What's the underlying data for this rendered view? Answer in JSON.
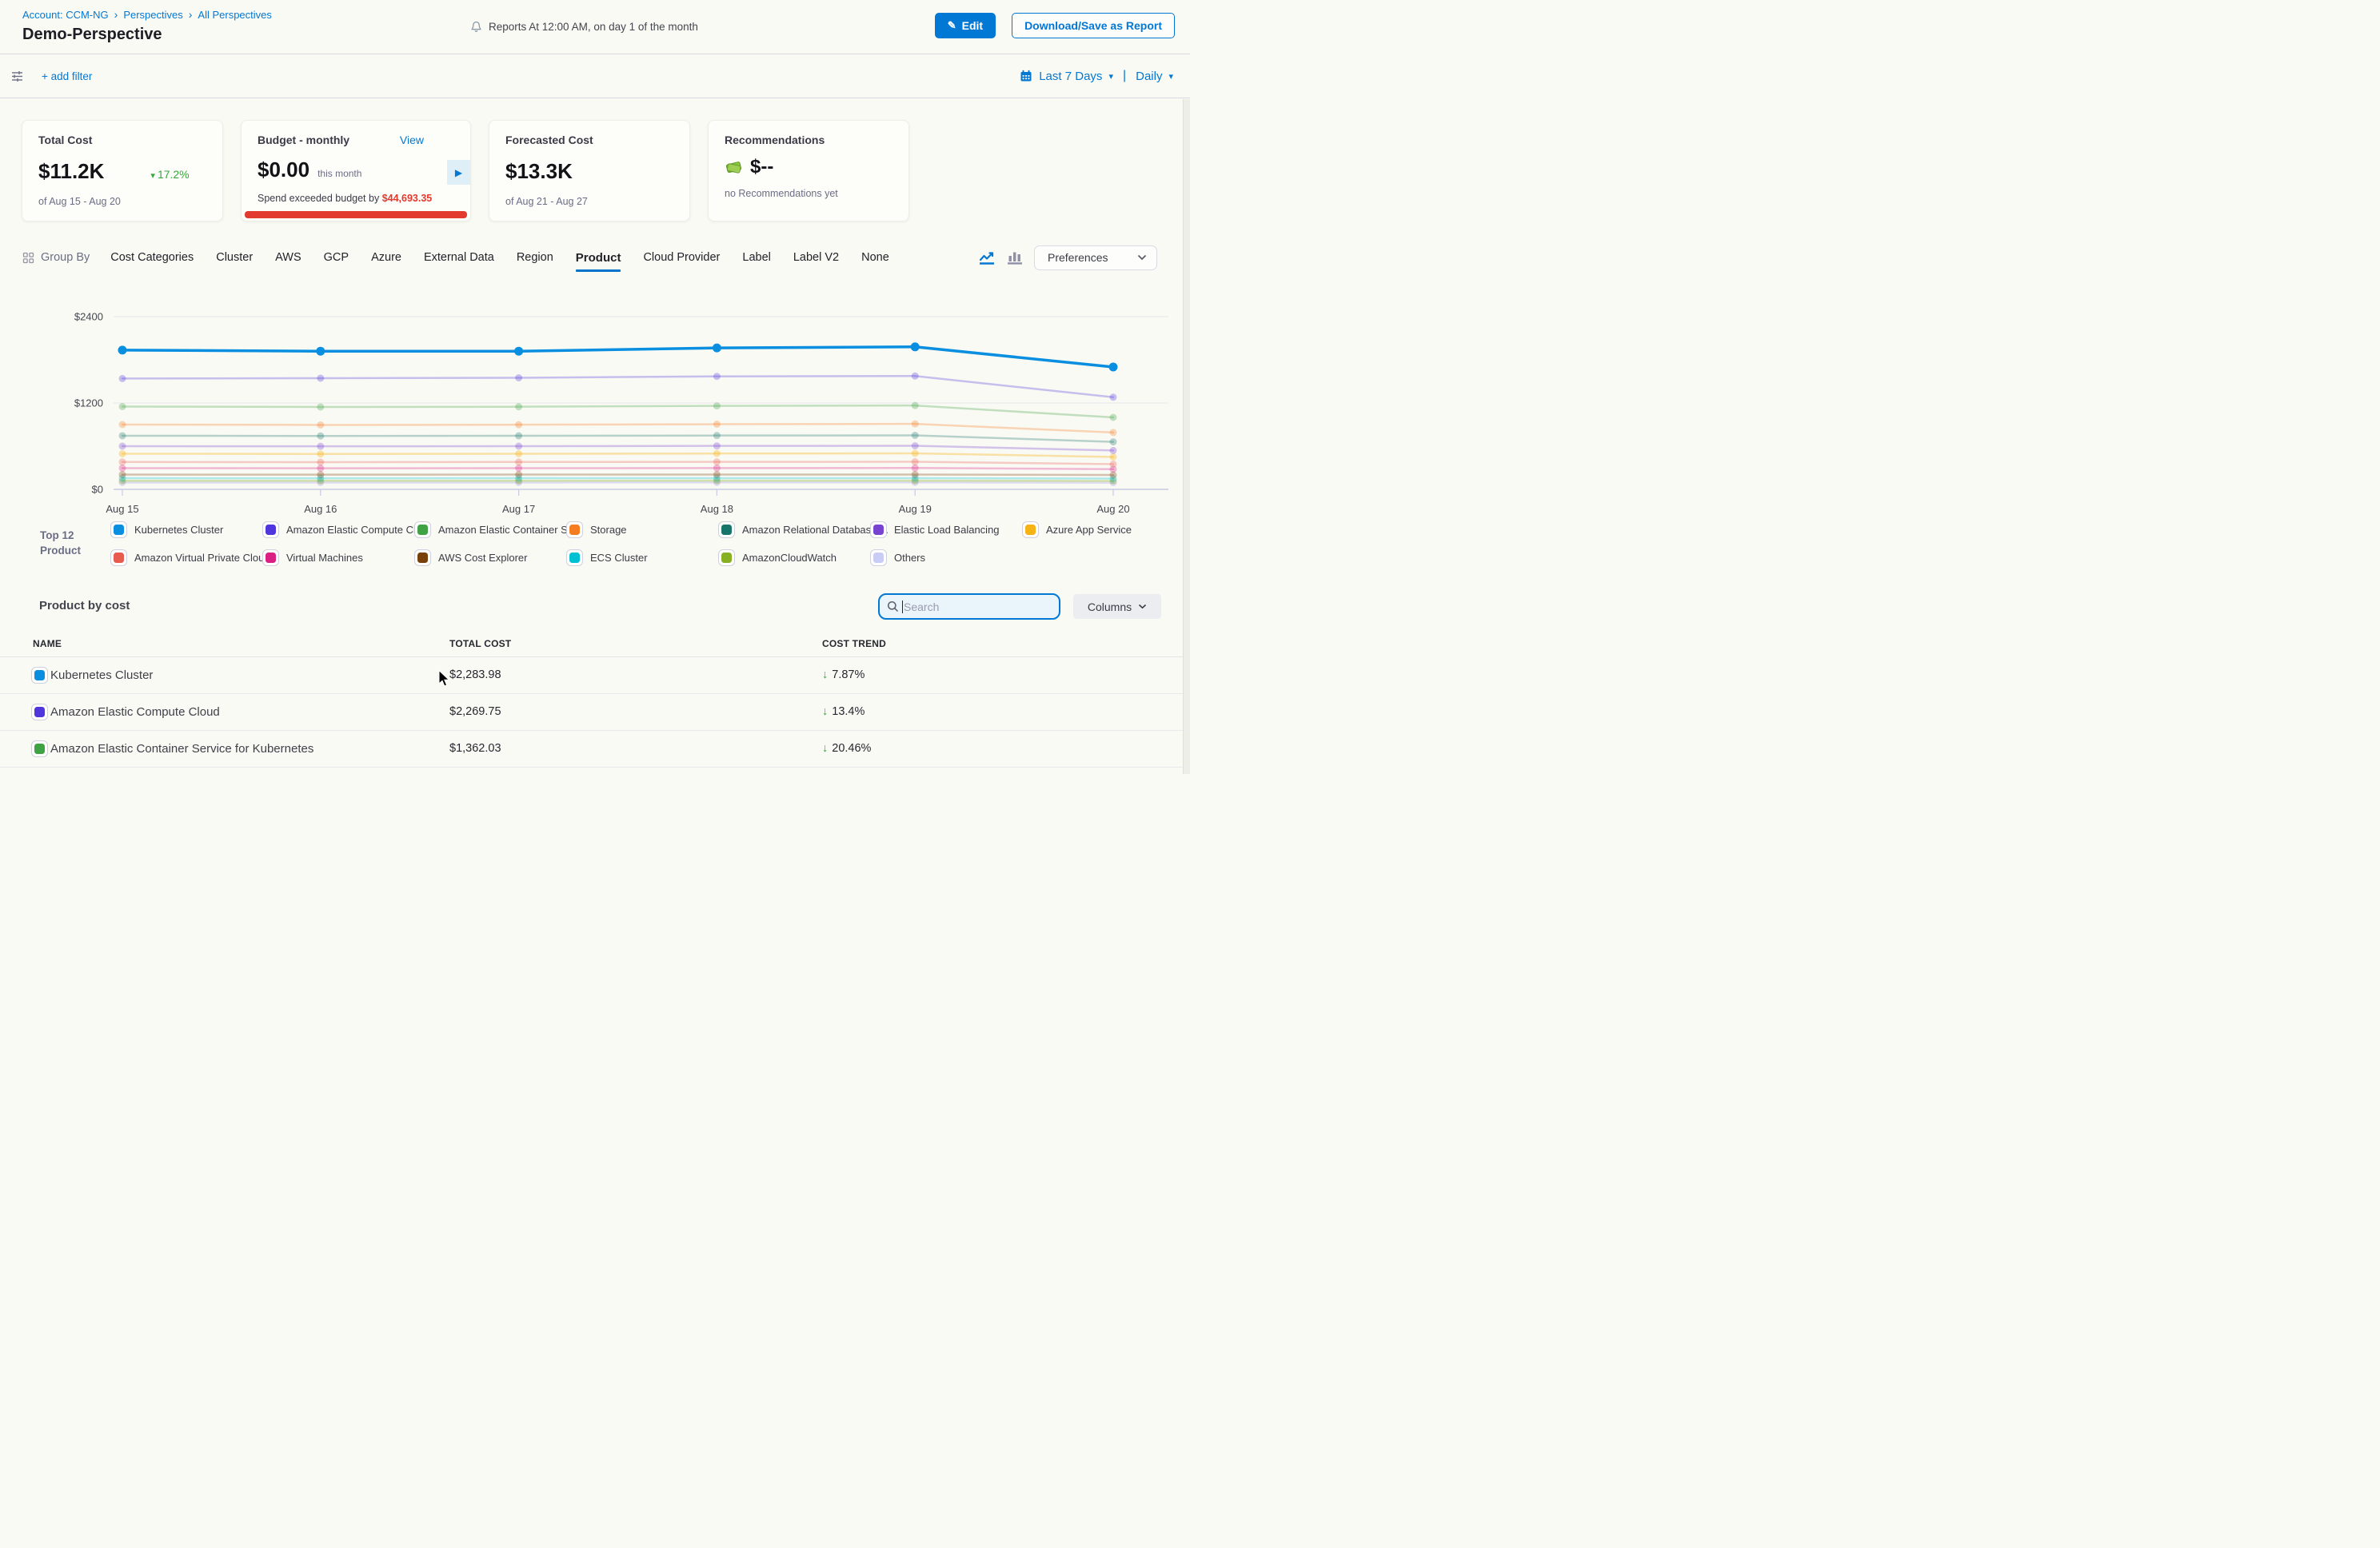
{
  "header": {
    "breadcrumb": [
      "Account: CCM-NG",
      "Perspectives",
      "All Perspectives"
    ],
    "title": "Demo-Perspective",
    "reports_note": "Reports At 12:00 AM, on day 1 of the month",
    "edit_label": "Edit",
    "download_label": "Download/Save as Report"
  },
  "filterbar": {
    "add_filter_label": "+ add filter",
    "time_range_label": "Last 7 Days",
    "granularity_label": "Daily"
  },
  "cards": {
    "total_cost": {
      "title": "Total Cost",
      "value": "$11.2K",
      "trend_pct": "17.2%",
      "trend_direction": "down",
      "period": "of Aug 15 - Aug 20"
    },
    "budget": {
      "title": "Budget - monthly",
      "view_label": "View",
      "value": "$0.00",
      "value_suffix": "this month",
      "exceeded_text": "Spend exceeded budget by ",
      "exceeded_amount": "$44,693.35"
    },
    "forecasted": {
      "title": "Forecasted Cost",
      "value": "$13.3K",
      "period": "of Aug 21 - Aug 27"
    },
    "recommendations": {
      "title": "Recommendations",
      "value": "$--",
      "subtext": "no Recommendations yet"
    }
  },
  "groupby": {
    "label": "Group By",
    "tabs": [
      "Cost Categories",
      "Cluster",
      "AWS",
      "GCP",
      "Azure",
      "External Data",
      "Region",
      "Product",
      "Cloud Provider",
      "Label",
      "Label V2",
      "None"
    ],
    "active_tab": "Product",
    "preferences_label": "Preferences"
  },
  "chart_data": {
    "type": "line",
    "x": [
      "Aug 15",
      "Aug 16",
      "Aug 17",
      "Aug 18",
      "Aug 19",
      "Aug 20"
    ],
    "ylim": [
      0,
      2400
    ],
    "yticks": [
      0,
      1200,
      2400
    ],
    "ytick_labels": [
      "$0",
      "$1200",
      "$2400"
    ],
    "grid": true,
    "legend_position": "bottom",
    "series": [
      {
        "name": "Kubernetes Cluster",
        "color": "#0A8FE0",
        "opacity": 1,
        "width": 3.5,
        "marker_r": 5.5,
        "values": [
          1935,
          1920,
          1920,
          1965,
          1980,
          1700
        ]
      },
      {
        "name": "Amazon Elastic Compute Clo...",
        "color": "#4F35DC",
        "opacity": 0.3,
        "width": 2.5,
        "marker_r": 4.5,
        "values": [
          1540,
          1545,
          1550,
          1570,
          1575,
          1280
        ]
      },
      {
        "name": "Amazon Elastic Container Se...",
        "color": "#3FA243",
        "opacity": 0.3,
        "width": 2.5,
        "marker_r": 4.5,
        "values": [
          1150,
          1145,
          1148,
          1160,
          1165,
          1000
        ]
      },
      {
        "name": "Storage",
        "color": "#F57C20",
        "opacity": 0.3,
        "width": 2.5,
        "marker_r": 4.5,
        "values": [
          900,
          895,
          898,
          905,
          910,
          790
        ]
      },
      {
        "name": "Amazon Relational Database ...",
        "color": "#17756B",
        "opacity": 0.3,
        "width": 2.5,
        "marker_r": 4.5,
        "values": [
          745,
          742,
          744,
          748,
          750,
          660
        ]
      },
      {
        "name": "Elastic Load Balancing",
        "color": "#7743D0",
        "opacity": 0.3,
        "width": 2.5,
        "marker_r": 4.5,
        "values": [
          600,
          598,
          600,
          604,
          605,
          540
        ]
      },
      {
        "name": "Azure App Service",
        "color": "#F5B315",
        "opacity": 0.35,
        "width": 2.5,
        "marker_r": 4.5,
        "values": [
          495,
          492,
          494,
          498,
          500,
          450
        ]
      },
      {
        "name": "Amazon Virtual Private Cloud",
        "color": "#E85C50",
        "opacity": 0.3,
        "width": 2.5,
        "marker_r": 4.5,
        "values": [
          380,
          378,
          380,
          382,
          383,
          350
        ]
      },
      {
        "name": "Virtual Machines",
        "color": "#DB2084",
        "opacity": 0.3,
        "width": 2.5,
        "marker_r": 4.5,
        "values": [
          295,
          293,
          294,
          296,
          297,
          280
        ]
      },
      {
        "name": "AWS Cost Explorer",
        "color": "#7A4009",
        "opacity": 0.3,
        "width": 2.5,
        "marker_r": 4.5,
        "values": [
          205,
          204,
          205,
          206,
          206,
          200
        ]
      },
      {
        "name": "ECS Cluster",
        "color": "#00C0D4",
        "opacity": 0.3,
        "width": 2.5,
        "marker_r": 4.5,
        "values": [
          155,
          154,
          155,
          156,
          156,
          150
        ]
      },
      {
        "name": "AmazonCloudWatch",
        "color": "#87B022",
        "opacity": 0.35,
        "width": 2.5,
        "marker_r": 4.5,
        "values": [
          120,
          119,
          120,
          121,
          121,
          117
        ]
      },
      {
        "name": "Others",
        "color": "#A9A4E8",
        "opacity": 0.35,
        "width": 2.5,
        "marker_r": 4.5,
        "values": [
          95,
          94,
          95,
          96,
          96,
          92
        ]
      }
    ]
  },
  "legend": {
    "title_line1": "Top 12",
    "title_line2": "Product",
    "items": [
      {
        "label": "Kubernetes Cluster",
        "color": "#0A8FE0"
      },
      {
        "label": "Amazon Elastic Compute Clo...",
        "color": "#4F35DC"
      },
      {
        "label": "Amazon Elastic Container Se...",
        "color": "#3FA243"
      },
      {
        "label": "Storage",
        "color": "#F57C20"
      },
      {
        "label": "Amazon Relational Database ...",
        "color": "#17756B"
      },
      {
        "label": "Elastic Load Balancing",
        "color": "#7743D0"
      },
      {
        "label": "Azure App Service",
        "color": "#F5B315"
      },
      {
        "label": "Amazon Virtual Private Cloud",
        "color": "#E85C50"
      },
      {
        "label": "Virtual Machines",
        "color": "#DB2084"
      },
      {
        "label": "AWS Cost Explorer",
        "color": "#7A4009"
      },
      {
        "label": "ECS Cluster",
        "color": "#00C0D4"
      },
      {
        "label": "AmazonCloudWatch",
        "color": "#87B022"
      },
      {
        "label": "Others",
        "color": "#C9CCF4"
      }
    ]
  },
  "table": {
    "section_title": "Product by cost",
    "search_placeholder": "Search",
    "columns_label": "Columns",
    "headers": [
      "NAME",
      "TOTAL COST",
      "COST TREND"
    ],
    "rows": [
      {
        "color": "#0A8FE0",
        "name": "Kubernetes Cluster",
        "total_cost": "$2,283.98",
        "trend": "7.87%",
        "trend_direction": "down"
      },
      {
        "color": "#4F35DC",
        "name": "Amazon Elastic Compute Cloud",
        "total_cost": "$2,269.75",
        "trend": "13.4%",
        "trend_direction": "down"
      },
      {
        "color": "#3FA243",
        "name": "Amazon Elastic Container Service for Kubernetes",
        "total_cost": "$1,362.03",
        "trend": "20.46%",
        "trend_direction": "down"
      }
    ]
  },
  "colors": {
    "primary_blue": "#0278D5",
    "link_blue": "#0478D2",
    "trend_green": "#3DA73D",
    "alert_red": "#E23A2E",
    "axis_line": "#C7CAE4",
    "grid_line": "#E7E7EC"
  }
}
